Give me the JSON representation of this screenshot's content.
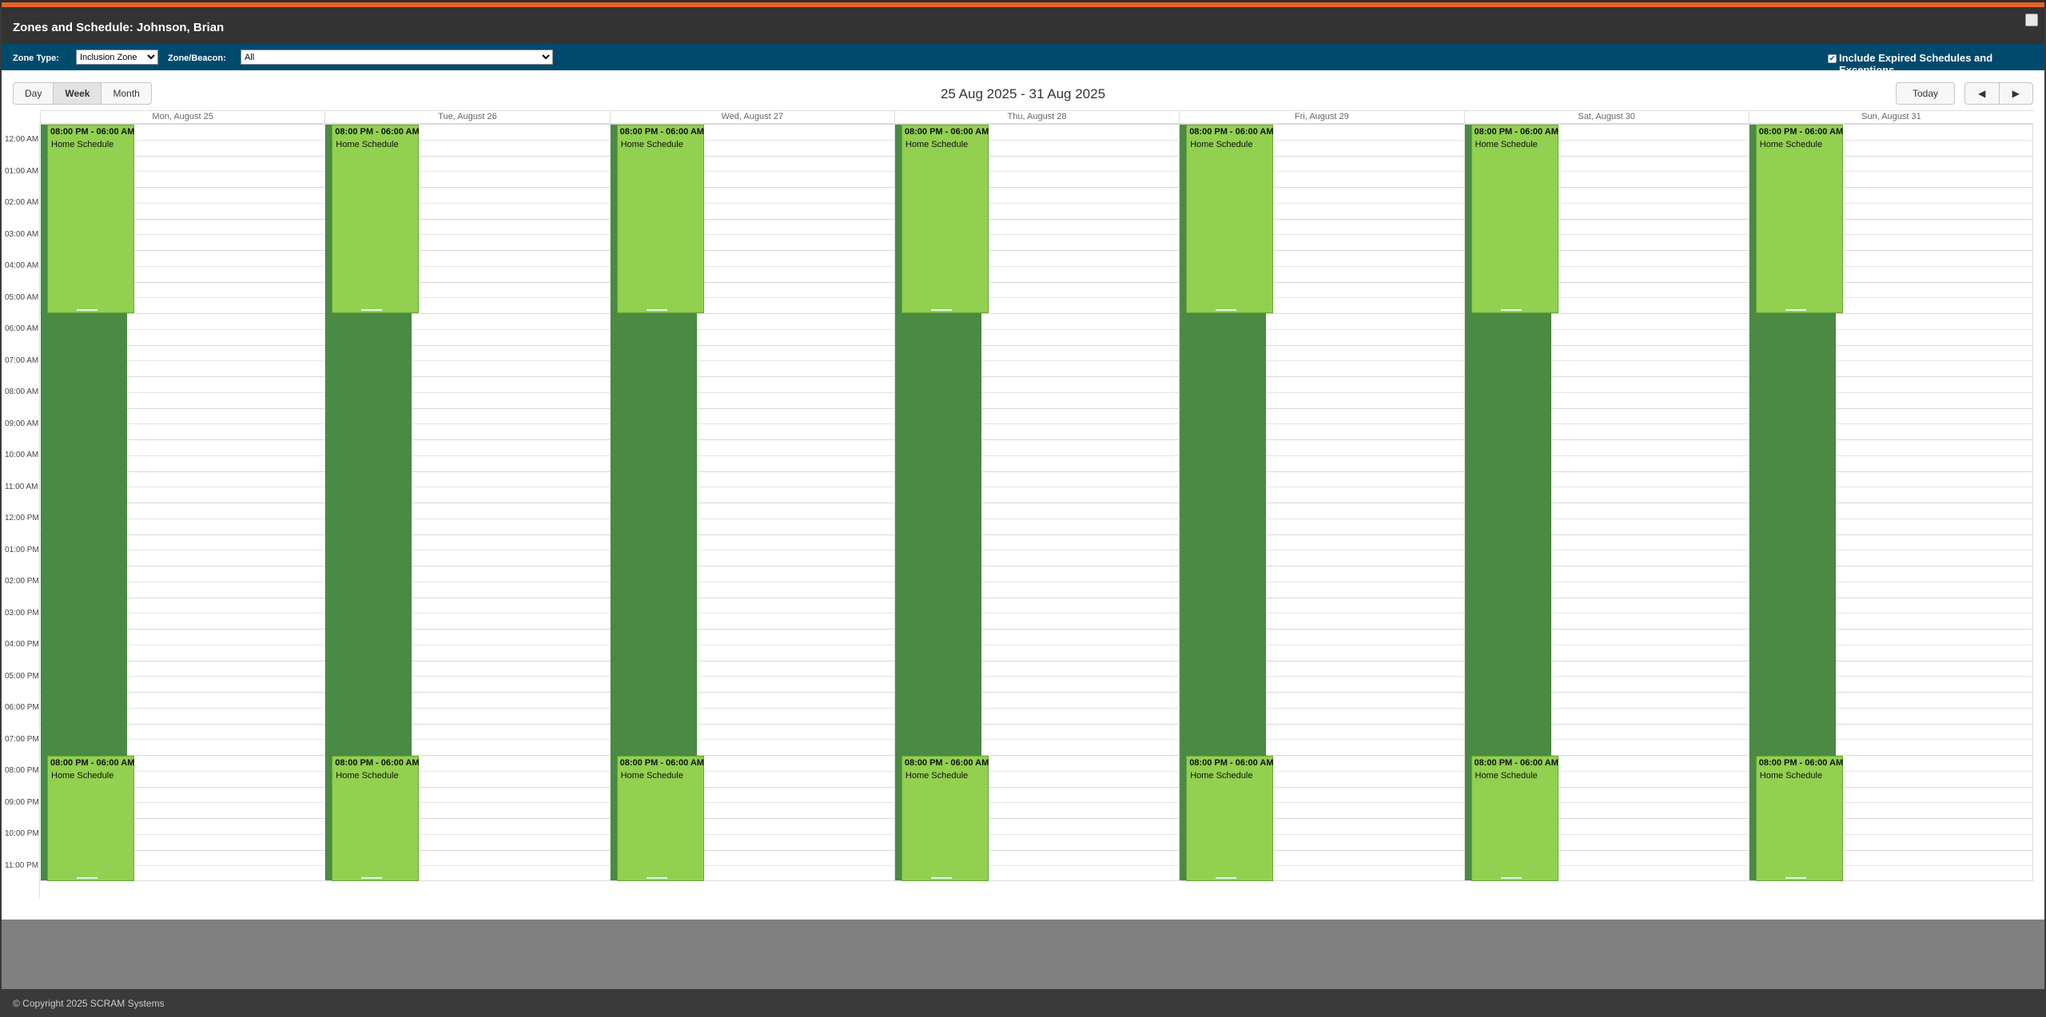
{
  "window": {
    "title": "Zones and Schedule:  Johnson, Brian"
  },
  "filters": {
    "zone_type_label": "Zone Type:",
    "zone_type_value": "Inclusion Zone",
    "zone_beacon_label": "Zone/Beacon:",
    "zone_beacon_value": "All",
    "include_expired_label": "Include Expired Schedules and Exceptions",
    "include_expired_checked": true
  },
  "toolbar": {
    "views": [
      "Day",
      "Week",
      "Month"
    ],
    "active_view": "Week",
    "date_range": "25 Aug 2025 - 31 Aug 2025",
    "today_label": "Today",
    "prev_icon": "◀",
    "next_icon": "▶"
  },
  "days": [
    "Mon, August 25",
    "Tue, August 26",
    "Wed, August 27",
    "Thu, August 28",
    "Fri, August 29",
    "Sat, August 30",
    "Sun, August 31"
  ],
  "times": [
    "12:00 AM",
    "01:00 AM",
    "02:00 AM",
    "03:00 AM",
    "04:00 AM",
    "05:00 AM",
    "06:00 AM",
    "07:00 AM",
    "08:00 AM",
    "09:00 AM",
    "10:00 AM",
    "11:00 AM",
    "12:00 PM",
    "01:00 PM",
    "02:00 PM",
    "03:00 PM",
    "04:00 PM",
    "05:00 PM",
    "06:00 PM",
    "07:00 PM",
    "08:00 PM",
    "09:00 PM",
    "10:00 PM",
    "11:00 PM"
  ],
  "events": {
    "time": "08:00 PM - 06:00 AM",
    "name": "Home Schedule",
    "start_hour": 20,
    "end_hour": 6
  },
  "colors": {
    "accent": "#e8632a",
    "filter_bar": "#004a6e",
    "event": "#92d050",
    "event_dark": "#4a8a42"
  },
  "footer": {
    "copyright": "© Copyright 2025 SCRAM Systems"
  }
}
